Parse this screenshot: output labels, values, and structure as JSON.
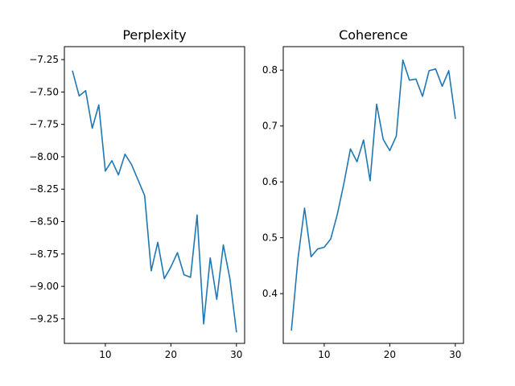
{
  "chart_data": [
    {
      "type": "line",
      "title": "Perplexity",
      "xlabel": "",
      "ylabel": "",
      "xlim": [
        3.75,
        31.25
      ],
      "ylim": [
        -9.44,
        -7.15
      ],
      "xticks": [
        10,
        20,
        30
      ],
      "xtick_labels": [
        "10",
        "20",
        "30"
      ],
      "yticks": [
        -7.25,
        -7.5,
        -7.75,
        -8.0,
        -8.25,
        -8.5,
        -8.75,
        -9.0,
        -9.25
      ],
      "ytick_labels": [
        "−7.25",
        "−7.50",
        "−7.75",
        "−8.00",
        "−8.25",
        "−8.50",
        "−8.75",
        "−9.00",
        "−9.25"
      ],
      "grid": false,
      "series": [
        {
          "color": "#1f77b4",
          "x": [
            5,
            6,
            7,
            8,
            9,
            10,
            11,
            12,
            13,
            14,
            15,
            16,
            17,
            18,
            19,
            20,
            21,
            22,
            23,
            24,
            25,
            26,
            27,
            28,
            29,
            30
          ],
          "y": [
            -7.34,
            -7.53,
            -7.49,
            -7.78,
            -7.6,
            -8.11,
            -8.03,
            -8.14,
            -7.98,
            -8.06,
            -8.18,
            -8.3,
            -8.88,
            -8.66,
            -8.94,
            -8.85,
            -8.74,
            -8.91,
            -8.93,
            -8.45,
            -9.29,
            -8.78,
            -9.1,
            -8.68,
            -8.94,
            -9.35
          ]
        }
      ]
    },
    {
      "type": "line",
      "title": "Coherence",
      "xlabel": "",
      "ylabel": "",
      "xlim": [
        3.75,
        31.25
      ],
      "ylim": [
        0.311,
        0.842
      ],
      "xticks": [
        10,
        20,
        30
      ],
      "xtick_labels": [
        "10",
        "20",
        "30"
      ],
      "yticks": [
        0.4,
        0.5,
        0.6,
        0.7,
        0.8
      ],
      "ytick_labels": [
        "0.4",
        "0.5",
        "0.6",
        "0.7",
        "0.8"
      ],
      "grid": false,
      "series": [
        {
          "color": "#1f77b4",
          "x": [
            5,
            6,
            7,
            8,
            9,
            10,
            11,
            12,
            13,
            14,
            15,
            16,
            17,
            18,
            19,
            20,
            21,
            22,
            23,
            24,
            25,
            26,
            27,
            28,
            29,
            30
          ],
          "y": [
            0.335,
            0.463,
            0.553,
            0.466,
            0.48,
            0.483,
            0.498,
            0.542,
            0.597,
            0.659,
            0.636,
            0.675,
            0.602,
            0.739,
            0.676,
            0.656,
            0.682,
            0.818,
            0.782,
            0.784,
            0.753,
            0.799,
            0.802,
            0.771,
            0.799,
            0.714
          ]
        }
      ]
    }
  ]
}
